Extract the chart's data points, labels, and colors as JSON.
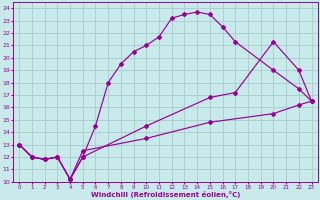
{
  "bg_color": "#c8eaea",
  "grid_color": "#aacccc",
  "line_color": "#990099",
  "xlabel": "Windchill (Refroidissement éolien,°C)",
  "xlim": [
    -0.5,
    23.5
  ],
  "ylim": [
    10,
    24.5
  ],
  "xticks": [
    0,
    1,
    2,
    3,
    4,
    5,
    6,
    7,
    8,
    9,
    10,
    11,
    12,
    13,
    14,
    15,
    16,
    17,
    18,
    19,
    20,
    21,
    22,
    23
  ],
  "yticks": [
    10,
    11,
    12,
    13,
    14,
    15,
    16,
    17,
    18,
    19,
    20,
    21,
    22,
    23,
    24
  ],
  "curve1_x": [
    0,
    1,
    2,
    3,
    4,
    5,
    6,
    7,
    8,
    9,
    10,
    11,
    12,
    13,
    14,
    15,
    16,
    17,
    20,
    22,
    23
  ],
  "curve1_y": [
    13.0,
    12.0,
    11.8,
    12.0,
    10.2,
    12.0,
    14.5,
    18.0,
    19.5,
    20.5,
    21.0,
    21.7,
    23.2,
    23.5,
    23.7,
    23.5,
    22.5,
    21.3,
    19.0,
    17.5,
    16.5
  ],
  "curve2_x": [
    0,
    1,
    2,
    3,
    4,
    5,
    10,
    15,
    17,
    20,
    22,
    23
  ],
  "curve2_y": [
    13.0,
    12.0,
    11.8,
    12.0,
    10.2,
    12.0,
    14.5,
    16.8,
    17.2,
    21.3,
    19.0,
    16.5
  ],
  "curve3_x": [
    0,
    1,
    2,
    3,
    4,
    5,
    10,
    15,
    20,
    22,
    23
  ],
  "curve3_y": [
    13.0,
    12.0,
    11.8,
    12.0,
    10.2,
    12.5,
    13.5,
    14.8,
    15.5,
    16.2,
    16.5
  ]
}
